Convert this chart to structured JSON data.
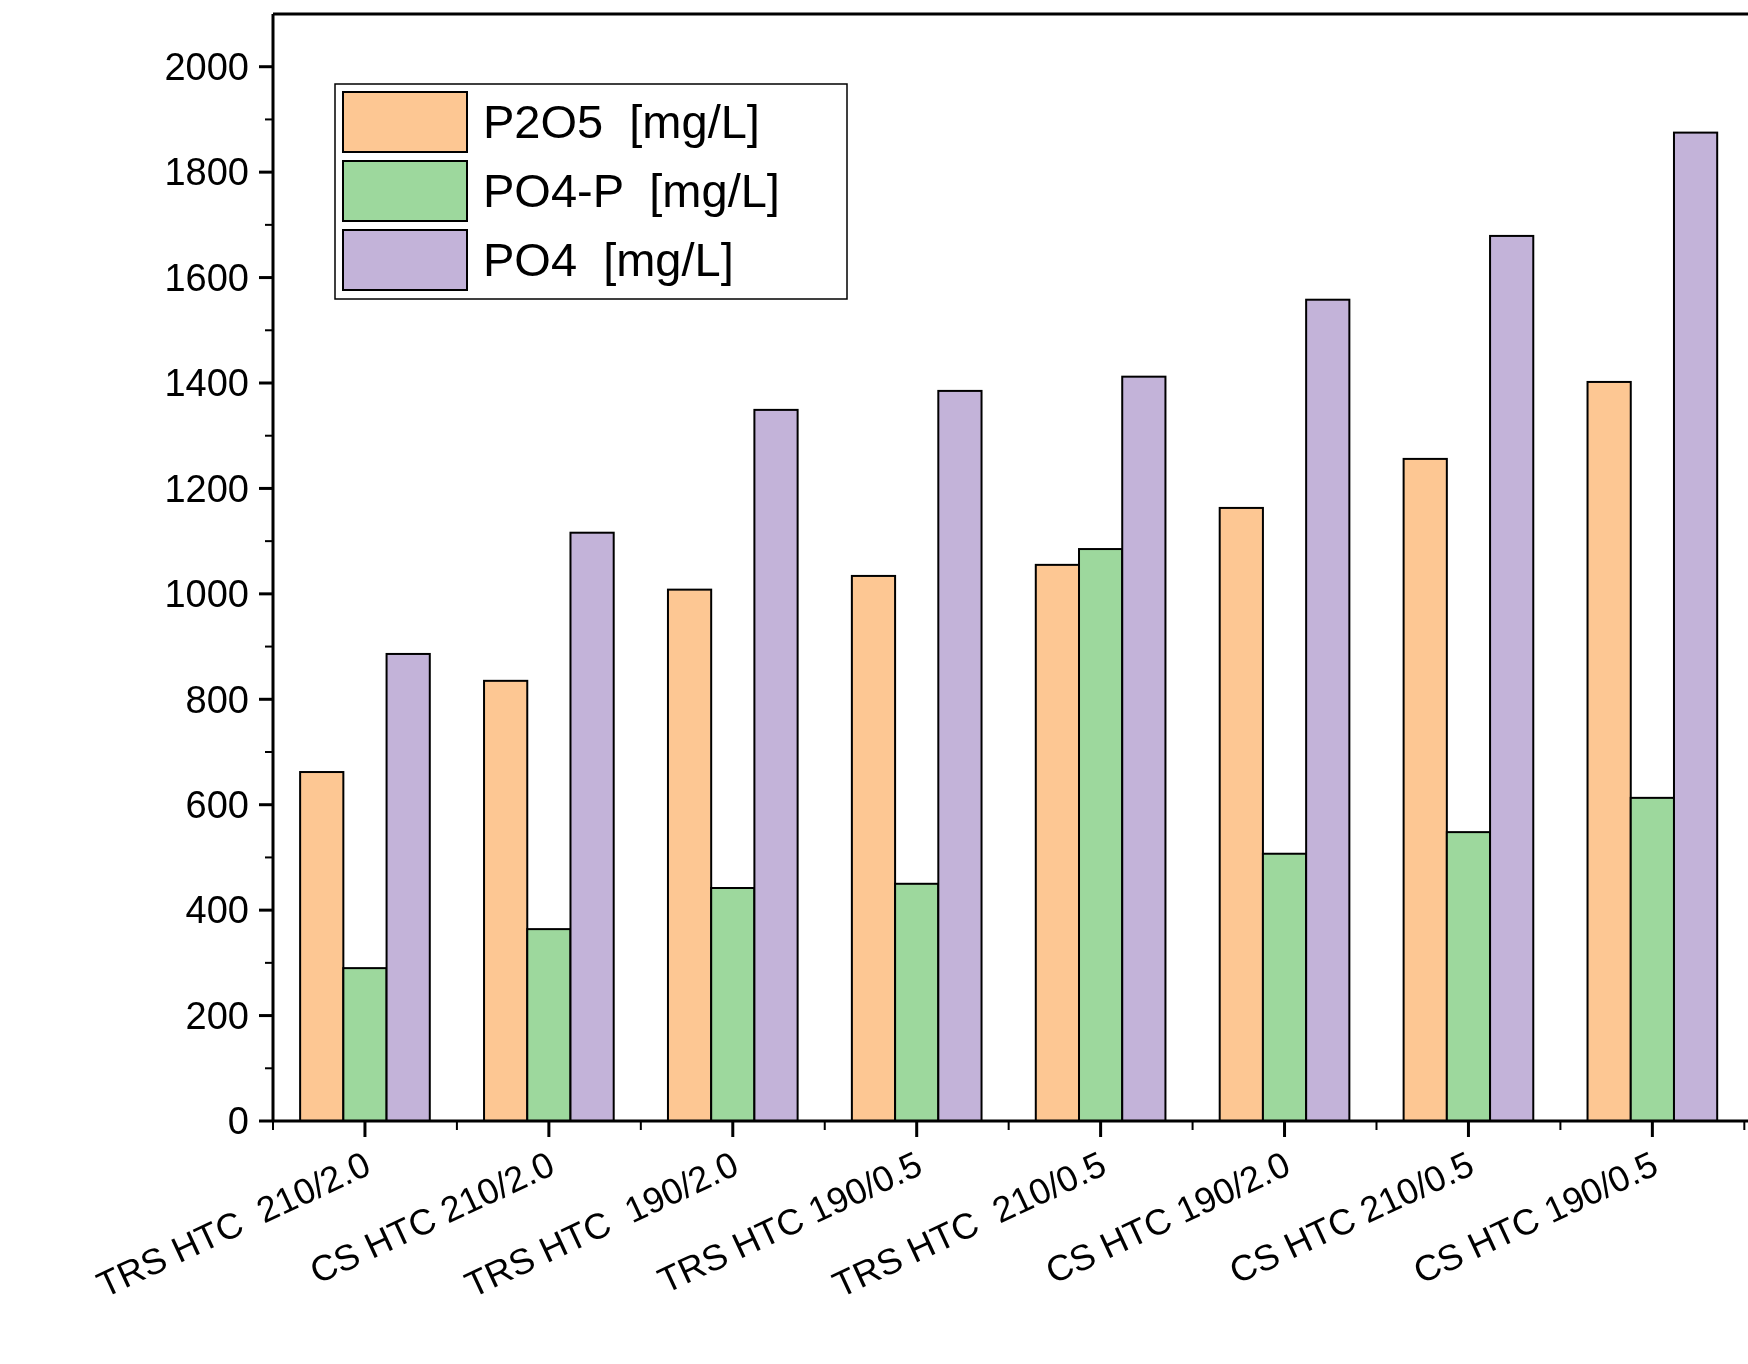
{
  "chart_data": {
    "type": "bar",
    "categories": [
      "TRS HTC  210/2.0",
      "CS HTC 210/2.0",
      "TRS HTC  190/2.0",
      "TRS HTC 190/0.5",
      "TRS HTC  210/0.5",
      "CS HTC 190/2.0",
      "CS HTC 210/0.5",
      "CS HTC 190/0.5"
    ],
    "series": [
      {
        "name": "P2O5  [mg/L]",
        "color": "#fdc793",
        "values": [
          662,
          835,
          1008,
          1034,
          1055,
          1163,
          1256,
          1402
        ]
      },
      {
        "name": "PO4-P  [mg/L]",
        "color": "#9dd89d",
        "values": [
          290,
          364,
          442,
          450,
          1085,
          507,
          548,
          613
        ]
      },
      {
        "name": "PO4  [mg/L]",
        "color": "#c3b3d9",
        "values": [
          886,
          1116,
          1349,
          1385,
          1412,
          1558,
          1679,
          1875
        ]
      }
    ],
    "ylim": [
      0,
      2100
    ],
    "yticks": [
      0,
      200,
      400,
      600,
      800,
      1000,
      1200,
      1400,
      1600,
      1800,
      2000
    ],
    "grid": false,
    "legend": "top left"
  }
}
